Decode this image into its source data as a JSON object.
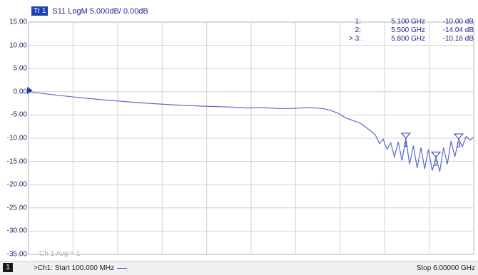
{
  "trace": {
    "badge": "Tr 1",
    "format": "S11 LogM 5.000dB/  0.00dB"
  },
  "y_axis": {
    "labels": [
      "15.00",
      "10.00",
      "5.00",
      "0.00",
      "-5.00",
      "-10.00",
      "-15.00",
      "-20.00",
      "-25.00",
      "-30.00",
      "-35.00"
    ],
    "divisions": 10,
    "reference_level_db": 0.0,
    "scale_db_per_div": 5.0
  },
  "markers": [
    {
      "id": "1:",
      "freq": "5.100 GHz",
      "value": "-10.00 dB",
      "label": "1",
      "active": false
    },
    {
      "id": "2:",
      "freq": "5.500 GHz",
      "value": "-14.04 dB",
      "label": "2",
      "active": false
    },
    {
      "id": "> 3:",
      "freq": "5.800 GHz",
      "value": "-10.16 dB",
      "label": "3",
      "active": true
    }
  ],
  "averaging": "Ch 1 Avg =     1",
  "status": {
    "channel_box": "1",
    "start": ">Ch1:  Start  100.000 MHz",
    "stop": "Stop  6.00000 GHz"
  },
  "chart_data": {
    "type": "line",
    "title": "",
    "xlabel": "",
    "ylabel": "",
    "x_unit": "GHz",
    "xlim": [
      0.1,
      6.0
    ],
    "ylim": [
      -35,
      15
    ],
    "grid": true,
    "trace_color": "#5a6ad0",
    "series": [
      {
        "x": [
          0.1,
          0.4,
          0.8,
          1.2,
          1.6,
          2.0,
          2.4,
          2.8,
          3.0,
          3.2,
          3.4,
          3.6,
          3.8,
          4.0,
          4.1,
          4.2,
          4.3,
          4.4,
          4.5,
          4.6,
          4.65,
          4.7,
          4.75,
          4.8,
          4.85,
          4.9,
          4.95,
          5.0,
          5.05,
          5.1,
          5.15,
          5.2,
          5.25,
          5.3,
          5.35,
          5.4,
          5.45,
          5.5,
          5.55,
          5.6,
          5.65,
          5.7,
          5.75,
          5.8,
          5.85,
          5.9,
          5.95,
          6.0
        ],
        "values": [
          0.0,
          -0.6,
          -1.3,
          -1.9,
          -2.4,
          -2.8,
          -3.1,
          -3.3,
          -3.5,
          -3.4,
          -3.6,
          -3.6,
          -3.4,
          -3.6,
          -4.0,
          -4.6,
          -5.6,
          -6.2,
          -6.8,
          -8.0,
          -8.6,
          -9.4,
          -11.2,
          -10.2,
          -12.4,
          -11.0,
          -14.0,
          -10.8,
          -14.8,
          -10.0,
          -15.6,
          -11.6,
          -16.4,
          -12.0,
          -16.6,
          -12.4,
          -17.0,
          -14.0,
          -17.2,
          -12.0,
          -15.6,
          -10.6,
          -14.0,
          -10.2,
          -11.8,
          -9.6,
          -10.4,
          -9.8
        ]
      }
    ]
  }
}
